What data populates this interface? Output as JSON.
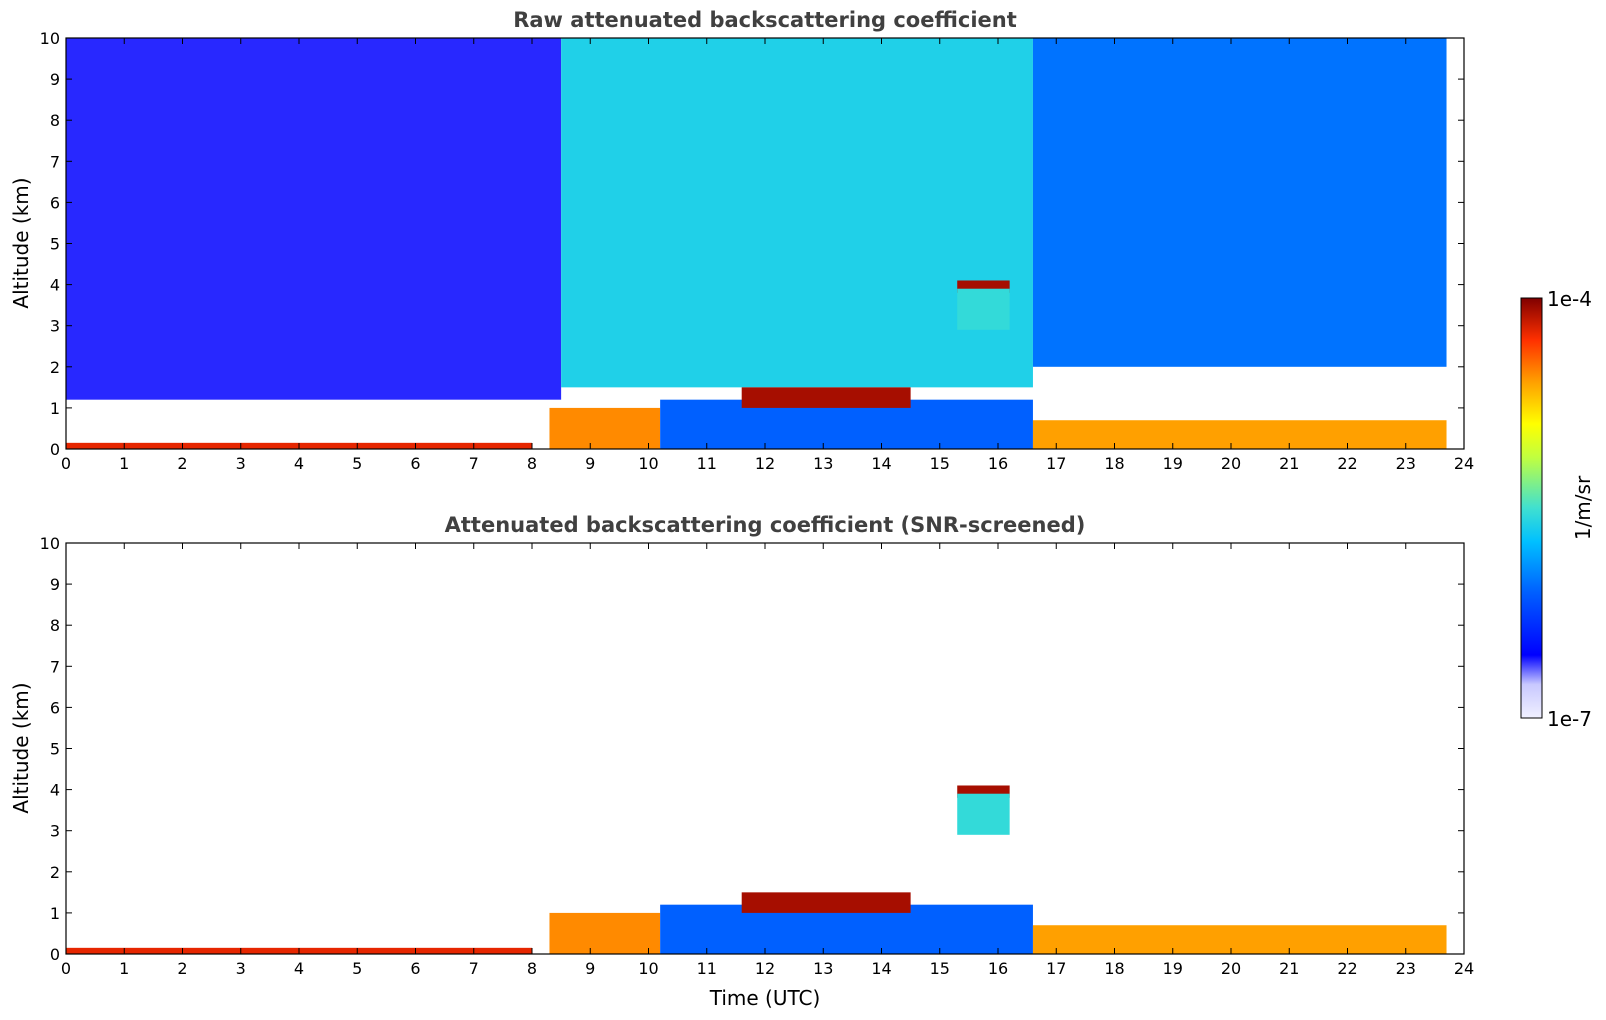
{
  "chart_data": [
    {
      "type": "heatmap",
      "title": "Raw attenuated backscattering coefficient",
      "xlabel": "",
      "ylabel": "Altitude (km)",
      "xlim": [
        0,
        24
      ],
      "ylim": [
        0,
        10
      ],
      "xticks": [
        "0",
        "1",
        "2",
        "3",
        "4",
        "5",
        "6",
        "7",
        "8",
        "9",
        "10",
        "11",
        "12",
        "13",
        "14",
        "15",
        "16",
        "17",
        "18",
        "19",
        "20",
        "21",
        "22",
        "23",
        "24"
      ],
      "yticks": [
        "0",
        "1",
        "2",
        "3",
        "4",
        "5",
        "6",
        "7",
        "8",
        "9",
        "10"
      ],
      "features": [
        {
          "name": "background-noise-night",
          "t0": 0,
          "t1": 8.5,
          "z0": 1.2,
          "z1": 10,
          "level": 0.18
        },
        {
          "name": "background-noise-day",
          "t0": 8.5,
          "t1": 16.6,
          "z0": 1.5,
          "z1": 10,
          "level": 0.45
        },
        {
          "name": "background-noise-evening",
          "t0": 16.6,
          "t1": 23.7,
          "z0": 2.0,
          "z1": 10,
          "level": 0.32
        },
        {
          "name": "surface-layer",
          "t0": 0,
          "t1": 8.0,
          "z0": 0,
          "z1": 0.15,
          "level": 0.92
        },
        {
          "name": "aerosol-layer-morning",
          "t0": 8.3,
          "t1": 10.2,
          "z0": 0,
          "z1": 1.0,
          "level": 0.82
        },
        {
          "name": "boundary-layer-midday",
          "t0": 10.2,
          "t1": 16.6,
          "z0": 0,
          "z1": 1.2,
          "level": 0.3
        },
        {
          "name": "cloud-layer-midday",
          "t0": 11.6,
          "t1": 14.5,
          "z0": 1.0,
          "z1": 1.5,
          "level": 0.97
        },
        {
          "name": "elevated-cloud",
          "t0": 15.3,
          "t1": 16.2,
          "z0": 3.8,
          "z1": 4.1,
          "level": 0.97
        },
        {
          "name": "cloud-virga",
          "t0": 15.3,
          "t1": 16.2,
          "z0": 2.9,
          "z1": 3.9,
          "level": 0.48
        },
        {
          "name": "boundary-layer-evening",
          "t0": 16.6,
          "t1": 23.7,
          "z0": 0,
          "z1": 0.7,
          "level": 0.8
        }
      ]
    },
    {
      "type": "heatmap",
      "title": "Attenuated backscattering coefficient (SNR-screened)",
      "xlabel": "Time (UTC)",
      "ylabel": "Altitude (km)",
      "xlim": [
        0,
        24
      ],
      "ylim": [
        0,
        10
      ],
      "xticks": [
        "0",
        "1",
        "2",
        "3",
        "4",
        "5",
        "6",
        "7",
        "8",
        "9",
        "10",
        "11",
        "12",
        "13",
        "14",
        "15",
        "16",
        "17",
        "18",
        "19",
        "20",
        "21",
        "22",
        "23",
        "24"
      ],
      "yticks": [
        "0",
        "1",
        "2",
        "3",
        "4",
        "5",
        "6",
        "7",
        "8",
        "9",
        "10"
      ],
      "features": [
        {
          "name": "surface-layer",
          "t0": 0,
          "t1": 8.0,
          "z0": 0,
          "z1": 0.15,
          "level": 0.92
        },
        {
          "name": "aerosol-layer-morning",
          "t0": 8.3,
          "t1": 10.2,
          "z0": 0,
          "z1": 1.0,
          "level": 0.82
        },
        {
          "name": "boundary-layer-midday",
          "t0": 10.2,
          "t1": 16.6,
          "z0": 0,
          "z1": 1.2,
          "level": 0.3
        },
        {
          "name": "cloud-layer-midday",
          "t0": 11.6,
          "t1": 14.5,
          "z0": 1.0,
          "z1": 1.5,
          "level": 0.97
        },
        {
          "name": "elevated-cloud",
          "t0": 15.3,
          "t1": 16.2,
          "z0": 3.8,
          "z1": 4.1,
          "level": 0.97
        },
        {
          "name": "cloud-virga",
          "t0": 15.3,
          "t1": 16.2,
          "z0": 2.9,
          "z1": 3.9,
          "level": 0.48
        },
        {
          "name": "boundary-layer-evening",
          "t0": 16.6,
          "t1": 23.7,
          "z0": 0,
          "z1": 0.7,
          "level": 0.8
        }
      ]
    }
  ],
  "colorbar": {
    "label": "1/m/sr",
    "max_label": "1e-4",
    "min_label": "1e-7",
    "colors": [
      "#f0f0ff",
      "#c8c8ff",
      "#0000ff",
      "#0060ff",
      "#00c0ff",
      "#40e0d0",
      "#c0ff40",
      "#ffff00",
      "#ffa000",
      "#ff3000",
      "#800000"
    ]
  }
}
